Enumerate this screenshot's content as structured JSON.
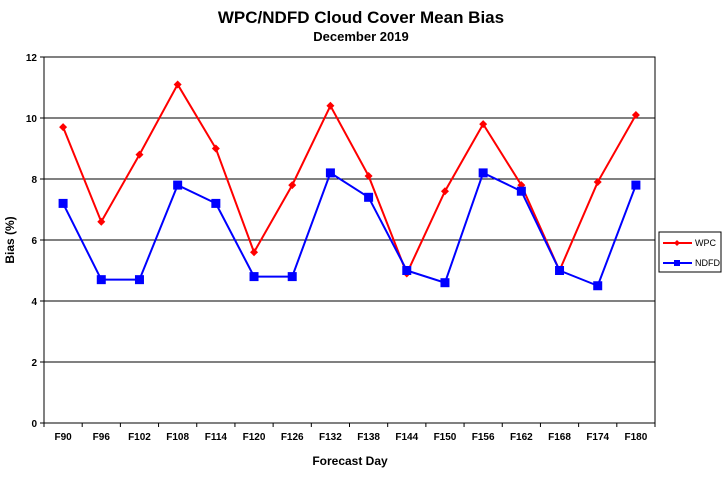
{
  "chart_data": {
    "type": "line",
    "title": "WPC/NDFD Cloud Cover Mean Bias",
    "subtitle": "December 2019",
    "xlabel": "Forecast Day",
    "ylabel": "Bias (%)",
    "ylim": [
      0,
      12
    ],
    "yticks": [
      "0",
      "2",
      "4",
      "6",
      "8",
      "10",
      "12"
    ],
    "grid": "horizontal",
    "legend_position": "right",
    "categories": [
      "F90",
      "F96",
      "F102",
      "F108",
      "F114",
      "F120",
      "F126",
      "F132",
      "F138",
      "F144",
      "F150",
      "F156",
      "F162",
      "F168",
      "F174",
      "F180"
    ],
    "series": [
      {
        "name": "WPC",
        "color": "#ff0000",
        "marker": "diamond",
        "values": [
          9.7,
          6.6,
          8.8,
          11.1,
          9.0,
          5.6,
          7.8,
          10.4,
          8.1,
          4.9,
          7.6,
          9.8,
          7.8,
          5.0,
          7.9,
          10.1
        ]
      },
      {
        "name": "NDFD",
        "color": "#0000ff",
        "marker": "square",
        "values": [
          7.2,
          4.7,
          4.7,
          7.8,
          7.2,
          4.8,
          4.8,
          8.2,
          7.4,
          5.0,
          4.6,
          8.2,
          7.6,
          5.0,
          4.5,
          7.8
        ]
      }
    ]
  }
}
